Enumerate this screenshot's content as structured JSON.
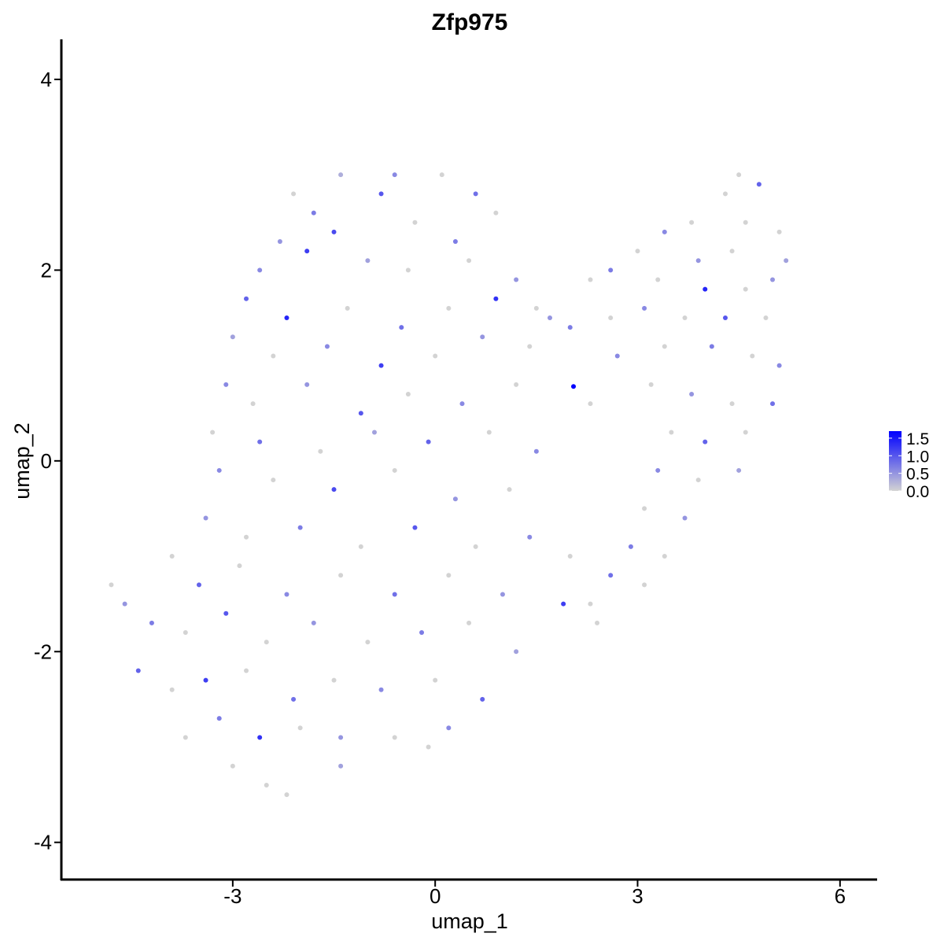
{
  "chart_data": {
    "type": "scatter",
    "title": "Zfp975",
    "x_label": "umap_1",
    "y_label": "umap_2",
    "xlim": [
      -5.54,
      6.55
    ],
    "ylim": [
      -4.39,
      4.42
    ],
    "xticks": [
      -3,
      0,
      3,
      6
    ],
    "yticks": [
      -4,
      -2,
      0,
      2,
      4
    ],
    "color_low": "#d3d3d3",
    "color_high": "#0000ff",
    "colorlim": [
      0,
      1.7
    ],
    "colorbar_ticks": [
      {
        "value": 0,
        "label": "0.0"
      },
      0.5,
      {
        "value": 1,
        "label": "1.0"
      },
      1.5
    ],
    "x": [
      -1.4,
      -0.6,
      0.1,
      0.6,
      -2.1,
      -1.8,
      -0.8,
      0.9,
      -2.3,
      -1.5,
      -0.3,
      0.3,
      -2.6,
      -1.9,
      -1.0,
      -0.4,
      0.5,
      1.2,
      -2.8,
      -2.2,
      -1.3,
      -0.5,
      0.2,
      0.9,
      1.5,
      -3.0,
      -2.4,
      -1.6,
      -0.8,
      0.0,
      0.7,
      1.4,
      2.0,
      2.6,
      -3.1,
      -2.7,
      -1.9,
      -1.1,
      -0.4,
      0.4,
      1.2,
      2.05,
      -3.3,
      -2.6,
      -1.7,
      -0.9,
      -0.1,
      0.8,
      1.5,
      -3.2,
      -2.4,
      -1.5,
      -0.6,
      0.3,
      1.1,
      -3.4,
      -2.8,
      -2.0,
      -1.1,
      -0.3,
      0.6,
      1.4,
      2.0,
      -3.9,
      -3.5,
      -2.9,
      -2.2,
      -1.4,
      -0.6,
      0.2,
      1.0,
      1.9,
      2.4,
      -4.8,
      -4.6,
      -4.2,
      -3.7,
      -3.1,
      -2.5,
      -1.8,
      -1.0,
      -0.2,
      0.5,
      1.2,
      -4.4,
      -3.9,
      -3.4,
      -2.8,
      -2.1,
      -1.5,
      -0.8,
      0.0,
      0.7,
      -3.7,
      -3.2,
      -2.6,
      -2.0,
      -1.4,
      -0.6,
      0.2,
      -3.0,
      -2.5,
      -2.2,
      -1.4,
      -0.1,
      4.3,
      4.5,
      4.8,
      3.8,
      3.4,
      4.6,
      5.1,
      3.0,
      3.9,
      4.4,
      5.2,
      2.6,
      3.3,
      4.0,
      4.6,
      5.0,
      3.1,
      3.7,
      4.3,
      4.9,
      3.4,
      4.1,
      4.7,
      5.1,
      3.2,
      3.8,
      4.4,
      5.0,
      3.5,
      4.0,
      4.6,
      3.3,
      3.9,
      4.5,
      3.1,
      3.7,
      2.9,
      3.4,
      2.6,
      3.1,
      2.3,
      2.3,
      1.7,
      2.3,
      2.7
    ],
    "y": [
      3.0,
      3.0,
      3.0,
      2.8,
      2.8,
      2.6,
      2.8,
      2.6,
      2.3,
      2.4,
      2.5,
      2.3,
      2.0,
      2.2,
      2.1,
      2.0,
      2.1,
      1.9,
      1.7,
      1.5,
      1.6,
      1.4,
      1.6,
      1.7,
      1.6,
      1.3,
      1.1,
      1.2,
      1.0,
      1.1,
      1.3,
      1.2,
      1.4,
      1.5,
      0.8,
      0.6,
      0.8,
      0.5,
      0.7,
      0.6,
      0.8,
      0.78,
      0.3,
      0.2,
      0.1,
      0.3,
      0.2,
      0.3,
      0.1,
      -0.1,
      -0.2,
      -0.3,
      -0.1,
      -0.4,
      -0.3,
      -0.6,
      -0.8,
      -0.7,
      -0.9,
      -0.7,
      -0.9,
      -0.8,
      -1.0,
      -1.0,
      -1.3,
      -1.1,
      -1.4,
      -1.2,
      -1.4,
      -1.2,
      -1.4,
      -1.5,
      -1.7,
      -1.3,
      -1.5,
      -1.7,
      -1.8,
      -1.6,
      -1.9,
      -1.7,
      -1.9,
      -1.8,
      -1.7,
      -2.0,
      -2.2,
      -2.4,
      -2.3,
      -2.2,
      -2.5,
      -2.3,
      -2.4,
      -2.3,
      -2.5,
      -2.9,
      -2.7,
      -2.9,
      -2.8,
      -2.9,
      -2.9,
      -2.8,
      -3.2,
      -3.4,
      -3.5,
      -3.2,
      -3.0,
      2.8,
      3.0,
      2.9,
      2.5,
      2.4,
      2.5,
      2.4,
      2.2,
      2.1,
      2.2,
      2.1,
      2.0,
      1.9,
      1.8,
      1.8,
      1.9,
      1.6,
      1.5,
      1.5,
      1.5,
      1.2,
      1.2,
      1.1,
      1.0,
      0.8,
      0.7,
      0.6,
      0.6,
      0.3,
      0.2,
      0.3,
      -0.1,
      -0.2,
      -0.1,
      -0.5,
      -0.6,
      -0.9,
      -1.0,
      -1.2,
      -1.3,
      -1.5,
      1.9,
      1.5,
      0.6,
      1.1
    ],
    "values": [
      0.3,
      0.6,
      0,
      0.8,
      0,
      0.7,
      1.0,
      0,
      0.5,
      1.1,
      0,
      0.7,
      0.6,
      1.2,
      0.4,
      0,
      0,
      0.5,
      0.9,
      1.4,
      0,
      0.8,
      0,
      1.3,
      0,
      0.4,
      0,
      0.6,
      1.2,
      0,
      0.5,
      0,
      0.7,
      0,
      0.6,
      0,
      0.5,
      1.0,
      0,
      0.6,
      0,
      1.7,
      0,
      0.8,
      0,
      0.4,
      0.9,
      0,
      0.6,
      0.6,
      0,
      1.1,
      0,
      0.5,
      0,
      0.5,
      0,
      0.7,
      0,
      1.0,
      0,
      0.6,
      0,
      0,
      0.9,
      0,
      0.6,
      0,
      0.8,
      0,
      0.5,
      1.2,
      0,
      0,
      0.5,
      0.7,
      0,
      1.0,
      0,
      0.5,
      0,
      0.7,
      0,
      0.4,
      0.9,
      0,
      1.2,
      0,
      0.8,
      0,
      0.6,
      0,
      0.9,
      0,
      0.7,
      1.3,
      0,
      0.5,
      0,
      0.6,
      0,
      0,
      0,
      0.4,
      0,
      0,
      0,
      0.9,
      0,
      0.6,
      0,
      0,
      0,
      0.5,
      0,
      0.4,
      0.7,
      0,
      1.4,
      0,
      0.5,
      0.6,
      0,
      1.0,
      0,
      0,
      0.7,
      0,
      0.6,
      0,
      0.5,
      0,
      0.8,
      0,
      0.9,
      0,
      0.6,
      0,
      0.4,
      0,
      0.5,
      0.7,
      0,
      0.8,
      0,
      0,
      0,
      0.5,
      0,
      0.6
    ]
  }
}
